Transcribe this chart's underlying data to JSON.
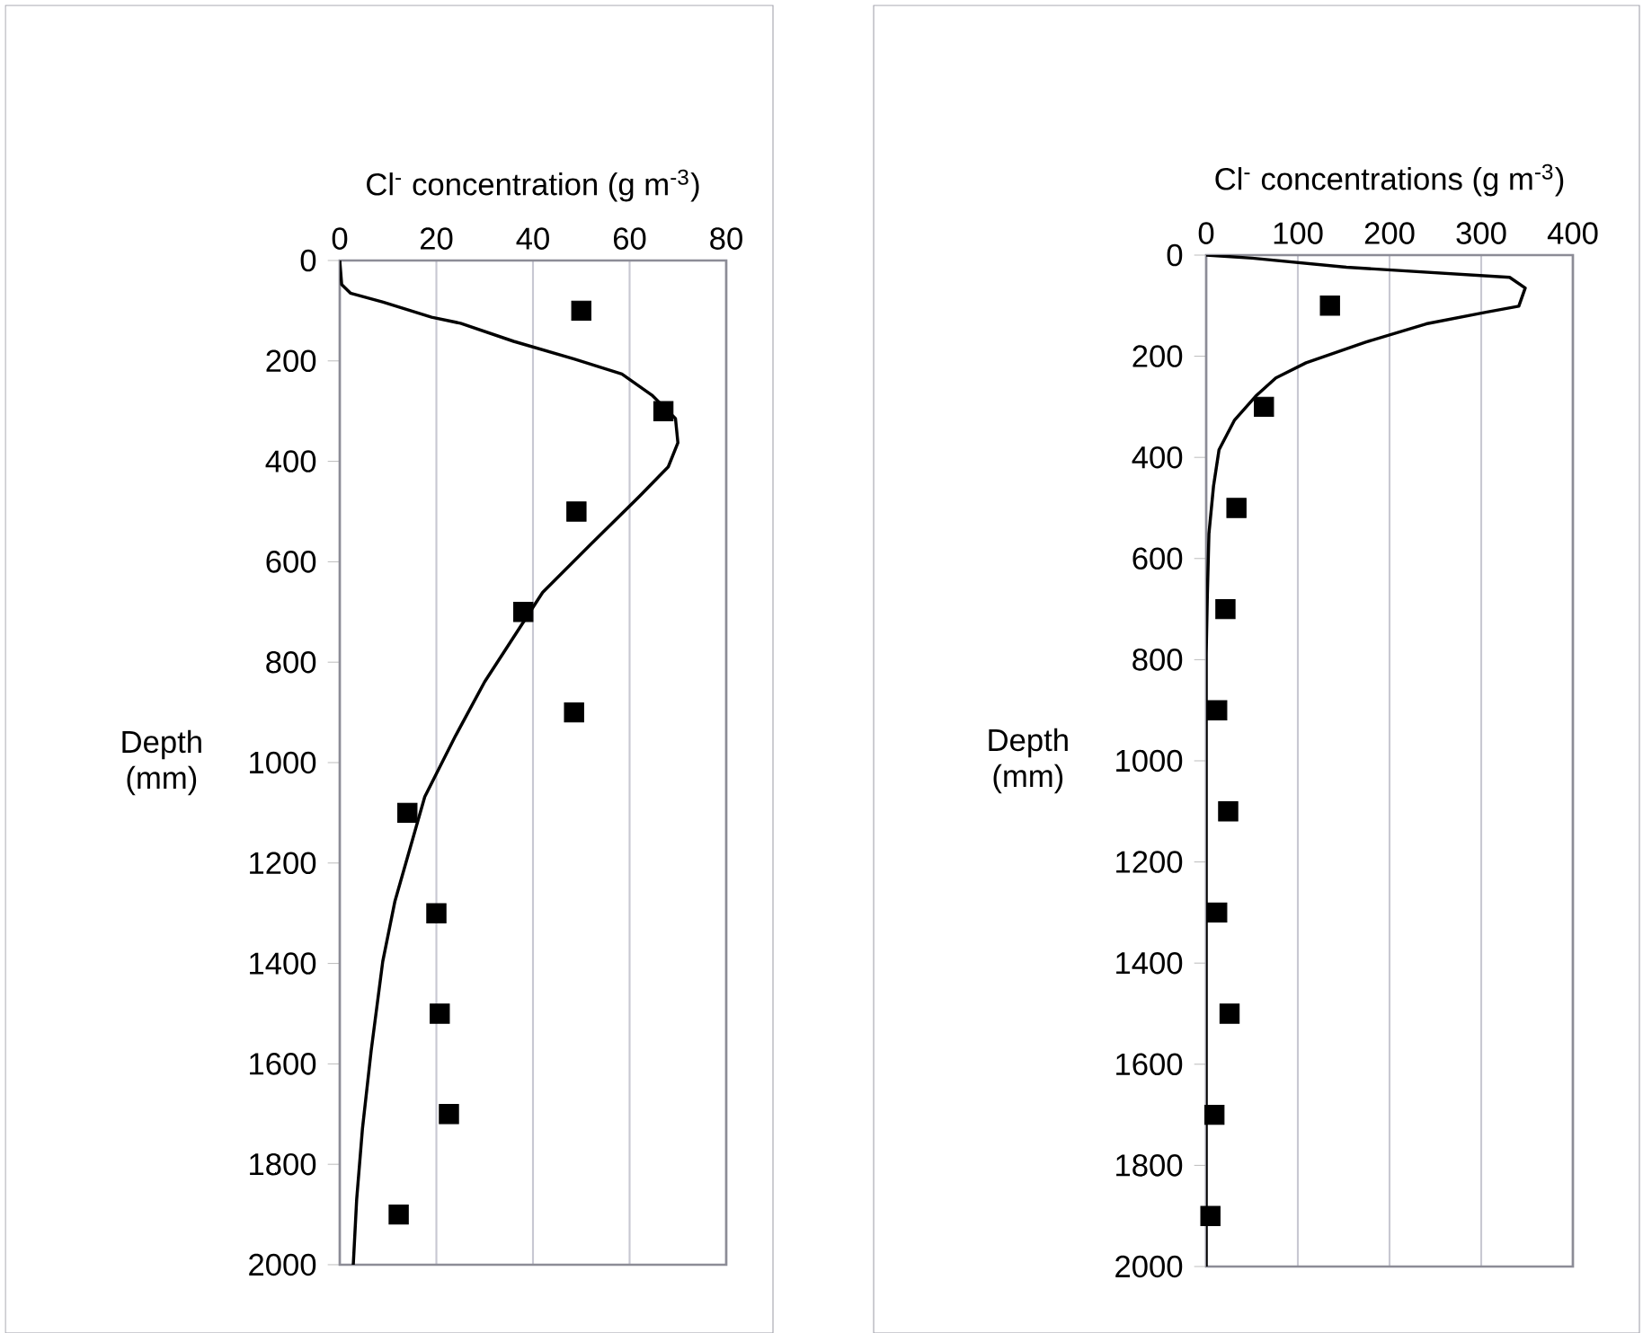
{
  "chart_data": [
    {
      "type": "line",
      "xlabel": "Cl$^{-}$ concentration (g m$^{-3}$)",
      "ylabel": "Depth (mm)",
      "xlim": [
        0,
        80
      ],
      "xticks": [
        0,
        20,
        40,
        60,
        80
      ],
      "ylim": [
        2000,
        0
      ],
      "yticks": [
        0,
        200,
        400,
        600,
        800,
        1000,
        1200,
        1400,
        1600,
        1800,
        2000
      ],
      "grid": "x",
      "series": [
        {
          "color": "#000000",
          "marker": "none",
          "x": [
            0,
            0.4,
            2.2,
            9,
            19,
            25,
            36,
            48.5,
            58.4,
            64.6,
            69.5,
            70,
            68,
            62,
            52,
            42,
            30,
            24,
            17.6,
            11.4,
            8.9,
            6.5,
            4.7,
            3.5,
            2.8
          ],
          "values": [
            0,
            48,
            65,
            83,
            113,
            125,
            161,
            196,
            226,
            268,
            315,
            363,
            411,
            470,
            565,
            661,
            839,
            946,
            1068,
            1277,
            1396,
            1574,
            1729,
            1870,
            2000
          ]
        },
        {
          "type": "scatter",
          "color": "#000000",
          "marker": "square",
          "x": [
            50,
            67,
            49,
            38,
            48.5,
            14,
            20,
            20.7,
            22.6,
            12.2
          ],
          "values": [
            100,
            300,
            500,
            700,
            900,
            1100,
            1300,
            1500,
            1700,
            1900
          ]
        }
      ]
    },
    {
      "type": "line",
      "xlabel": "Cl$^{-}$ concentrations (g m$^{-3}$)",
      "ylabel": "Depth (mm)",
      "xlim": [
        0,
        400
      ],
      "xticks": [
        0,
        100,
        200,
        300,
        400
      ],
      "ylim": [
        2000,
        0
      ],
      "yticks": [
        0,
        200,
        400,
        600,
        800,
        1000,
        1200,
        1400,
        1600,
        1800,
        2000
      ],
      "grid": "x",
      "series": [
        {
          "color": "#000000",
          "marker": "none",
          "x": [
            0,
            50,
            153,
            331,
            348,
            341,
            305,
            240,
            174,
            109,
            76,
            54,
            31,
            14,
            8,
            3,
            1.3,
            0,
            0
          ],
          "values": [
            0,
            6,
            24,
            44,
            65,
            101,
            113,
            136,
            172,
            213,
            243,
            279,
            326,
            385,
            457,
            551,
            670,
            789,
            2000
          ]
        },
        {
          "type": "scatter",
          "color": "#000000",
          "marker": "square",
          "x": [
            135,
            63,
            33,
            21,
            12,
            24,
            12,
            25.5,
            9,
            4.6
          ],
          "values": [
            100,
            300,
            500,
            700,
            900,
            1100,
            1300,
            1500,
            1700,
            1900
          ]
        }
      ]
    }
  ]
}
